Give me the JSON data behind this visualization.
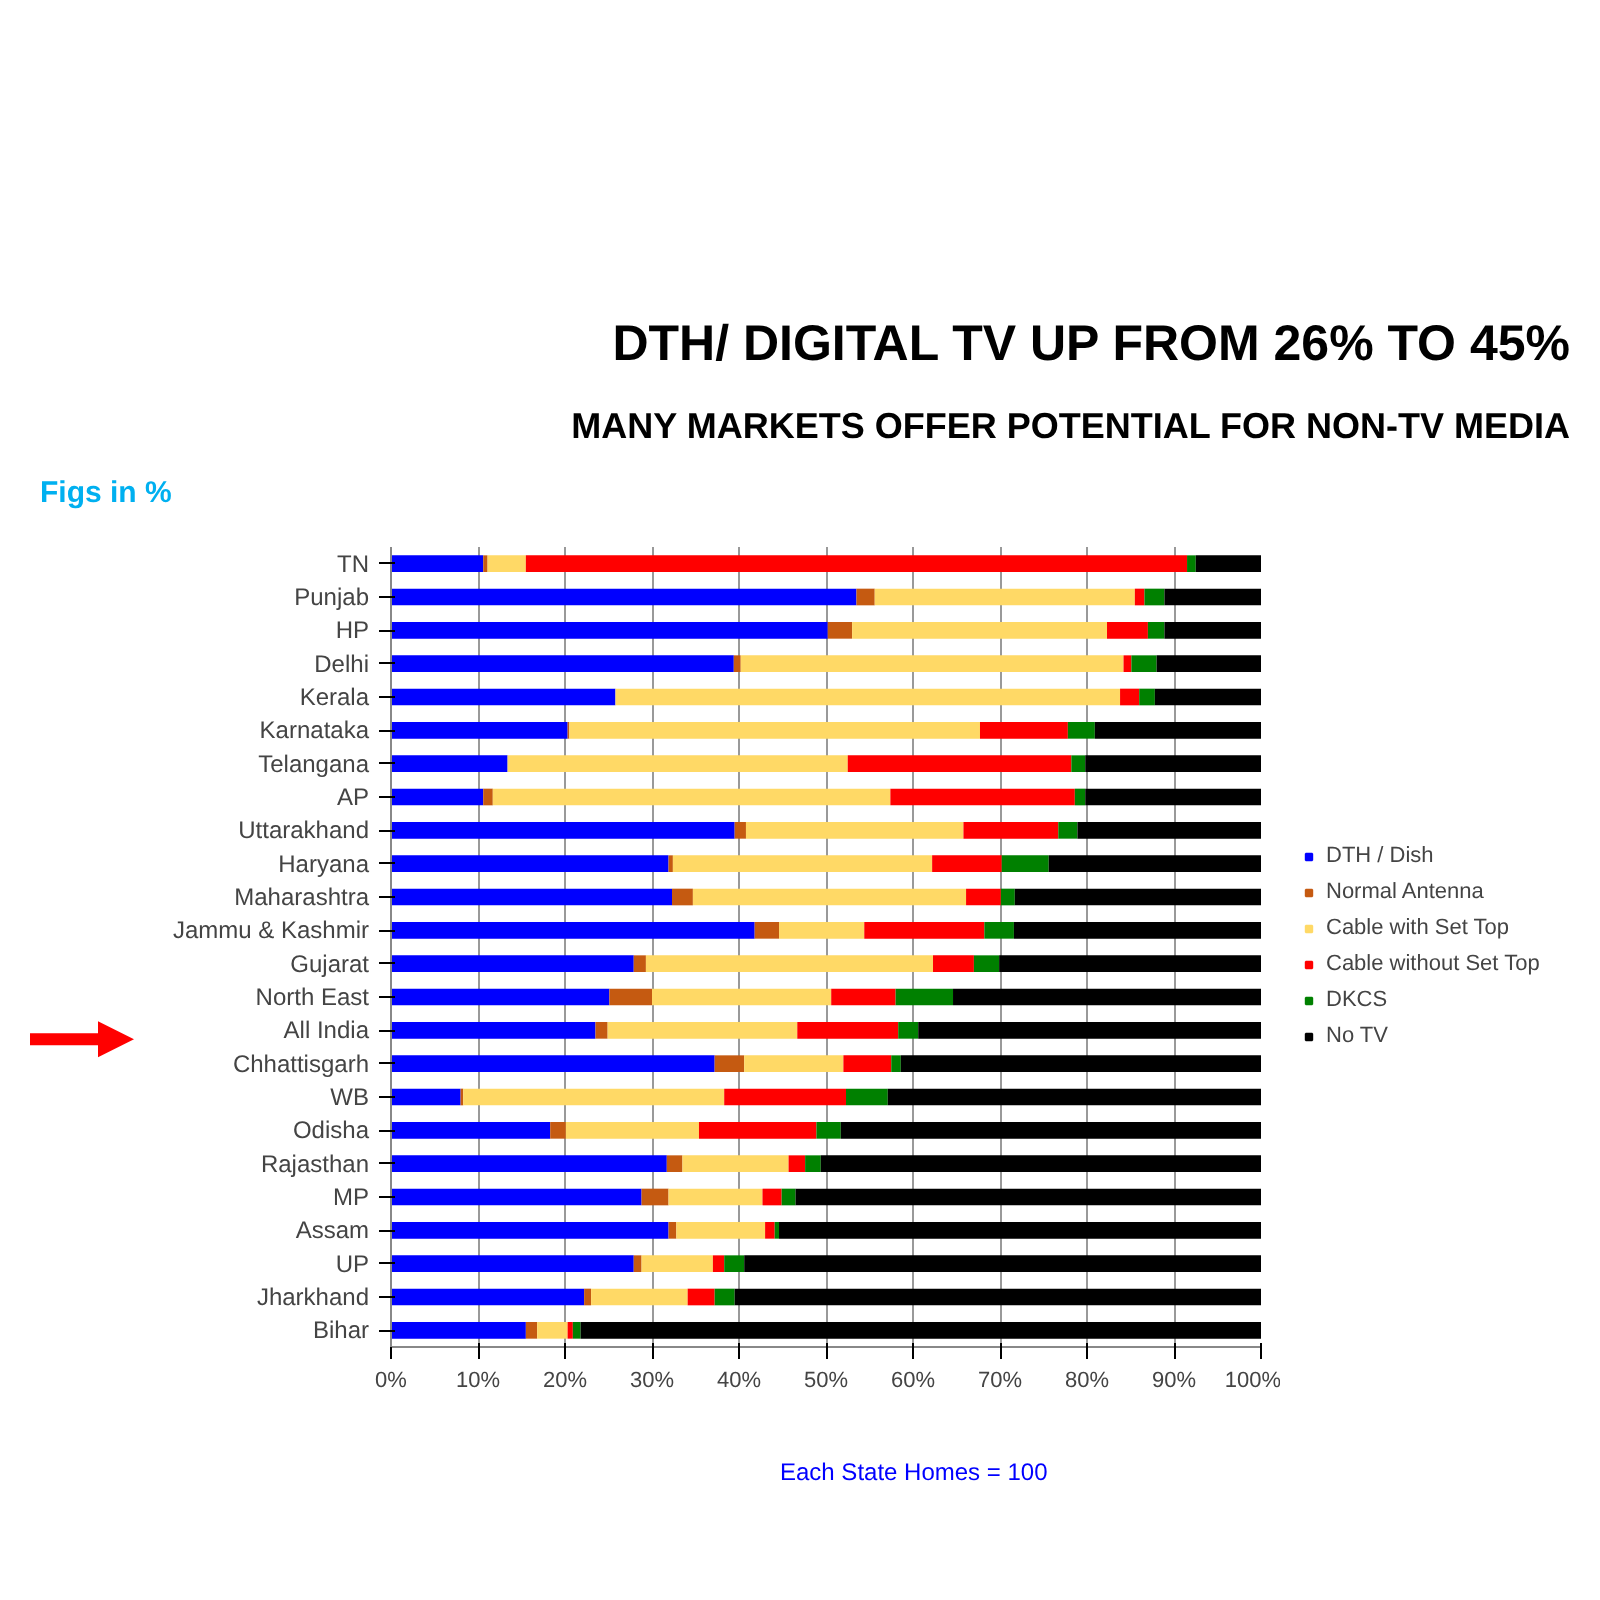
{
  "chart_data": {
    "type": "bar",
    "orientation": "horizontal",
    "stacked": true,
    "title": "DTH/ DIGITAL TV UP FROM 26% TO 45%",
    "subtitle": "MANY MARKETS OFFER POTENTIAL FOR NON-TV MEDIA",
    "annotations": [
      "Figs in %",
      "Each State Homes = 100"
    ],
    "categories": [
      "TN",
      "Punjab",
      "HP",
      "Delhi",
      "Kerala",
      "Karnataka",
      "Telangana",
      "AP",
      "Uttarakhand",
      "Haryana",
      "Maharashtra",
      "Jammu & Kashmir",
      "Gujarat",
      "North East",
      "All India",
      "Chhattisgarh",
      "WB",
      "Odisha",
      "Rajasthan",
      "MP",
      "Assam",
      "UP",
      "Jharkhand",
      "Bihar"
    ],
    "series": [
      {
        "name": "DTH / Dish",
        "color": "#0000ff",
        "values": [
          10.6,
          53.5,
          50.2,
          39.4,
          25.8,
          20.3,
          13.4,
          10.6,
          39.5,
          31.9,
          32.3,
          41.8,
          27.9,
          25.1,
          23.5,
          37.2,
          8.0,
          18.3,
          31.7,
          28.8,
          31.9,
          27.9,
          22.2,
          15.5
        ]
      },
      {
        "name": "Normal Antenna",
        "color": "#c55a11",
        "values": [
          0.5,
          2.1,
          2.8,
          0.8,
          0,
          0.2,
          0,
          1.1,
          1.3,
          0.5,
          2.4,
          2.8,
          1.4,
          4.9,
          1.4,
          3.4,
          0.3,
          1.8,
          1.8,
          3.1,
          0.9,
          0.9,
          0.8,
          1.3
        ]
      },
      {
        "name": "Cable with Set Top",
        "color": "#ffd966",
        "values": [
          4.4,
          29.9,
          29.3,
          44.0,
          58.0,
          47.2,
          39.1,
          45.7,
          25.0,
          29.8,
          31.4,
          9.8,
          33.0,
          20.6,
          21.8,
          11.4,
          30.0,
          15.3,
          12.2,
          10.8,
          10.2,
          8.2,
          11.1,
          3.5
        ]
      },
      {
        "name": "Cable without Set Top",
        "color": "#ff0000",
        "values": [
          76.0,
          1.1,
          4.7,
          0.9,
          2.2,
          10.1,
          25.7,
          21.2,
          10.9,
          8.0,
          4.0,
          13.8,
          4.7,
          7.4,
          11.6,
          5.5,
          14.0,
          13.5,
          1.9,
          2.2,
          1.1,
          1.3,
          3.1,
          0.6
        ]
      },
      {
        "name": "DKCS",
        "color": "#008000",
        "values": [
          1.0,
          2.3,
          1.9,
          2.9,
          1.8,
          3.1,
          1.6,
          1.2,
          2.2,
          5.4,
          1.6,
          3.4,
          2.9,
          6.6,
          2.3,
          1.1,
          4.8,
          2.8,
          1.8,
          1.6,
          0.5,
          2.3,
          2.3,
          0.9
        ]
      },
      {
        "name": "No TV",
        "color": "#000000",
        "values": [
          7.5,
          11.1,
          11.1,
          12.0,
          12.2,
          19.1,
          20.2,
          20.2,
          21.1,
          24.4,
          28.3,
          28.4,
          30.1,
          35.4,
          39.4,
          41.4,
          42.9,
          48.3,
          50.6,
          53.5,
          55.4,
          59.4,
          60.5,
          78.2
        ]
      }
    ],
    "xlim": [
      0,
      100
    ],
    "xticks": [
      {
        "value": 0,
        "label": "0%"
      },
      {
        "value": 10,
        "label": "10%"
      },
      {
        "value": 20,
        "label": "20%"
      },
      {
        "value": 30,
        "label": "30%"
      },
      {
        "value": 40,
        "label": "40%"
      },
      {
        "value": 50,
        "label": "50%"
      },
      {
        "value": 60,
        "label": "60%"
      },
      {
        "value": 70,
        "label": "70%"
      },
      {
        "value": 80,
        "label": "80%"
      },
      {
        "value": 90,
        "label": "90%"
      },
      {
        "value": 100,
        "label": "100%"
      }
    ],
    "grid": "x",
    "legend": "right"
  }
}
